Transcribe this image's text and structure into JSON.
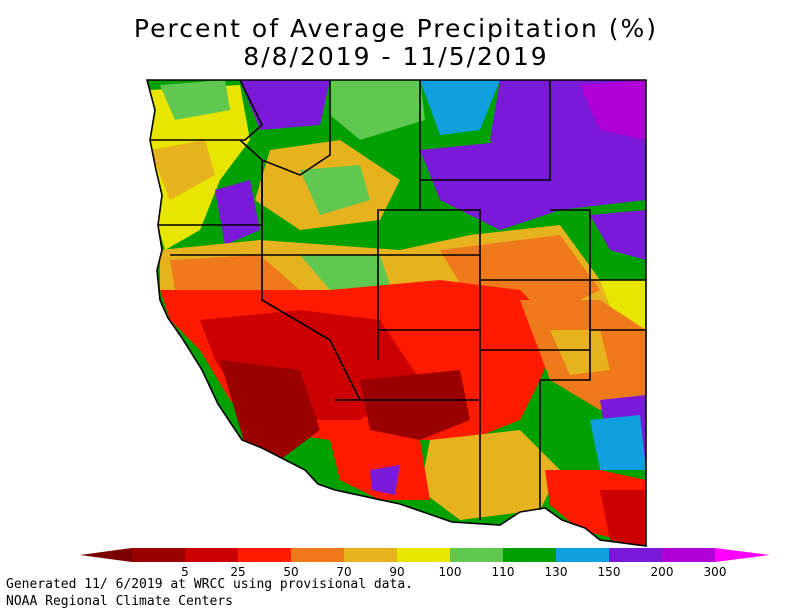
{
  "title": "Percent of Average Precipitation (%)",
  "subtitle": "8/8/2019 - 11/5/2019",
  "legend": {
    "bins": [
      {
        "label": "5",
        "color": "#9b0000"
      },
      {
        "label": "25",
        "color": "#cc0000"
      },
      {
        "label": "50",
        "color": "#ff1a00"
      },
      {
        "label": "70",
        "color": "#ee7a1c"
      },
      {
        "label": "90",
        "color": "#e6b21e"
      },
      {
        "label": "100",
        "color": "#e8e600"
      },
      {
        "label": "110",
        "color": "#60c850"
      },
      {
        "label": "130",
        "color": "#00a000"
      },
      {
        "label": "150",
        "color": "#10a0e0"
      },
      {
        "label": "200",
        "color": "#7a1ad8"
      },
      {
        "label": "300",
        "color": "#b000d8"
      }
    ],
    "low_color": "#7a0000",
    "high_color": "#ff00ff"
  },
  "footer": {
    "line1": "Generated 11/ 6/2019 at WRCC using provisional data.",
    "line2": "NOAA Regional Climate Centers"
  }
}
